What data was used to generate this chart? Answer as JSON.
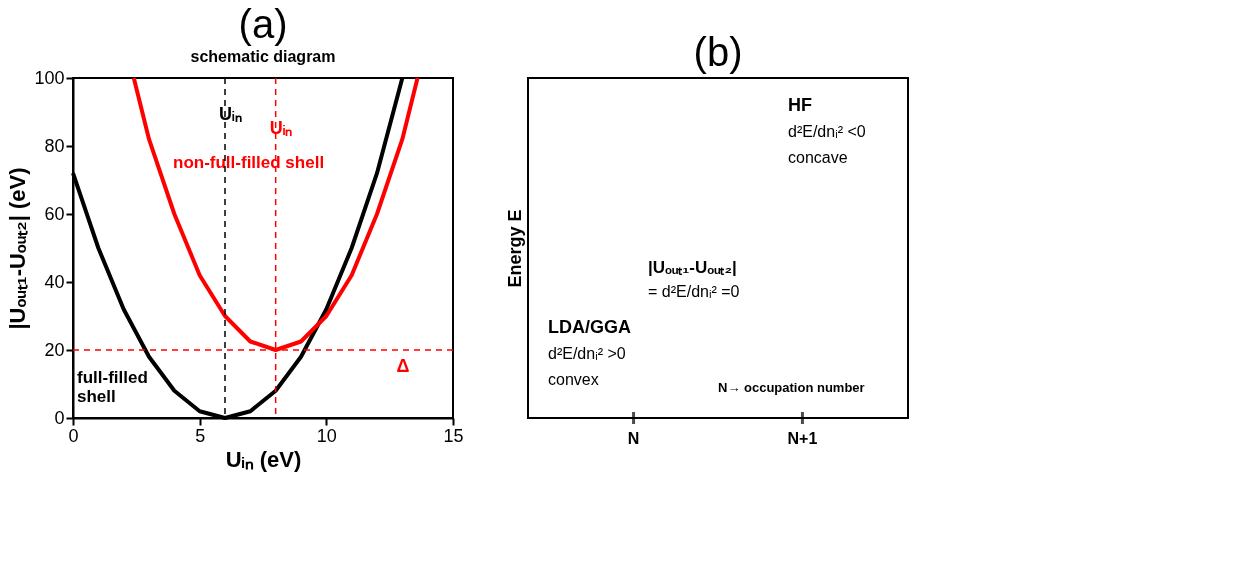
{
  "chart_data": [
    {
      "type": "line",
      "title": "(a)",
      "subtitle": "schematic diagram",
      "xlabel": "Uᵢₙ (eV)",
      "ylabel": "|Uₒᵤₜ₁-Uₒᵤₜ₂| (eV)",
      "series": [
        {
          "name": "full-filled shell",
          "color": "#000000",
          "x": [
            0,
            1,
            2,
            3,
            4,
            5,
            6,
            7,
            8,
            9,
            10,
            11,
            12,
            13
          ],
          "values": [
            72,
            50,
            32,
            18,
            8,
            2,
            0,
            2,
            8,
            18,
            32,
            50,
            72,
            100
          ]
        },
        {
          "name": "non-full-filled shell",
          "color": "#ff0000",
          "x": [
            2.4,
            3,
            4,
            5,
            6,
            7,
            8,
            9,
            10,
            11,
            12,
            13,
            13.6
          ],
          "values": [
            100,
            82,
            60,
            42,
            30,
            22.5,
            20,
            22.5,
            30,
            42,
            60,
            82,
            100
          ]
        }
      ],
      "xlim": [
        0,
        15
      ],
      "ylim": [
        0,
        100
      ],
      "xticks": [
        0,
        5,
        10,
        15
      ],
      "yticks": [
        0,
        20,
        40,
        60,
        80,
        100
      ],
      "grid": false,
      "legend": false,
      "marker": "none",
      "line_style": "solid",
      "ref_lines": [
        {
          "axis": "x",
          "value": 6,
          "label": "Uᵢₙ",
          "color": "#000000",
          "line_style": "dashed"
        },
        {
          "axis": "x",
          "value": 8,
          "label": "Uᵢₙ",
          "color": "#ff0000",
          "line_style": "dashed"
        },
        {
          "axis": "y",
          "value": 20,
          "label": "Δ",
          "color": "#ff0000",
          "line_style": "dashed"
        }
      ]
    },
    {
      "type": "other",
      "title": "(b)",
      "ylabel": "Energy E",
      "categories": [
        "N",
        "N+1"
      ],
      "annotations": [
        "HF",
        "d²E/dnᵢ² <0",
        "concave",
        "|Uₒᵤₜ₁-Uₒᵤₜ₂|",
        "= d²E/dnᵢ² =0",
        "LDA/GGA",
        "d²E/dnᵢ² >0",
        "convex",
        "N→ occupation number"
      ]
    }
  ]
}
